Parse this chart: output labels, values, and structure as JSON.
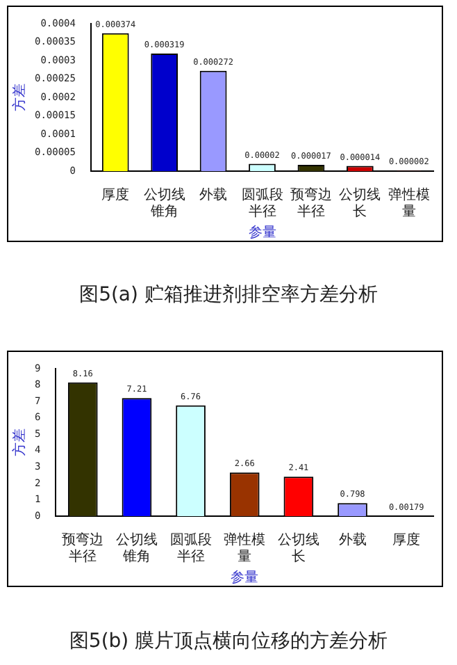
{
  "chart_data": [
    {
      "type": "bar",
      "categories": [
        "厚度",
        "公切线锥角",
        "外载",
        "圆弧段半径",
        "预弯边半径",
        "公切线长",
        "弹性模量"
      ],
      "values": [
        0.000374,
        0.000319,
        0.000272,
        2e-05,
        1.7e-05,
        1.4e-05,
        2e-06
      ],
      "value_labels": [
        "0.000374",
        "0.000319",
        "0.000272",
        "0.00002",
        "0.000017",
        "0.000014",
        "0.000002"
      ],
      "colors": [
        "#ffff00",
        "#0000cc",
        "#9999ff",
        "#ccffff",
        "#333300",
        "#cc0000",
        "#330000"
      ],
      "xlabel": "参量",
      "ylabel": "方差",
      "ylim": [
        0,
        0.0004
      ],
      "yticks": [
        0,
        {
          "value": 5e-05,
          "label": "0.00005"
        },
        0.0001,
        0.00015,
        0.0002,
        0.00025,
        0.0003,
        0.00035,
        0.0004
      ],
      "grid": false,
      "annotations": [
        "图5(a) 贮箱推进剂排空率方差分析"
      ]
    },
    {
      "type": "bar",
      "categories": [
        "预弯边半径",
        "公切线锥角",
        "圆弧段半径",
        "弹性模量",
        "公切线长",
        "外载",
        "厚度"
      ],
      "values": [
        8.16,
        7.21,
        6.76,
        2.66,
        2.41,
        0.798,
        0.00179
      ],
      "colors": [
        "#333300",
        "#0000ff",
        "#ccffff",
        "#993300",
        "#ff0000",
        "#9999ff",
        "#ffff00"
      ],
      "xlabel": "参量",
      "ylabel": "方差",
      "ylim": [
        0,
        9
      ],
      "yticks": [
        0,
        1,
        2,
        3,
        4,
        5,
        6,
        7,
        8,
        9
      ],
      "data_labels": true,
      "grid": false,
      "annotations": [
        "图5(b) 膜片顶点横向位移的方差分析"
      ]
    }
  ]
}
